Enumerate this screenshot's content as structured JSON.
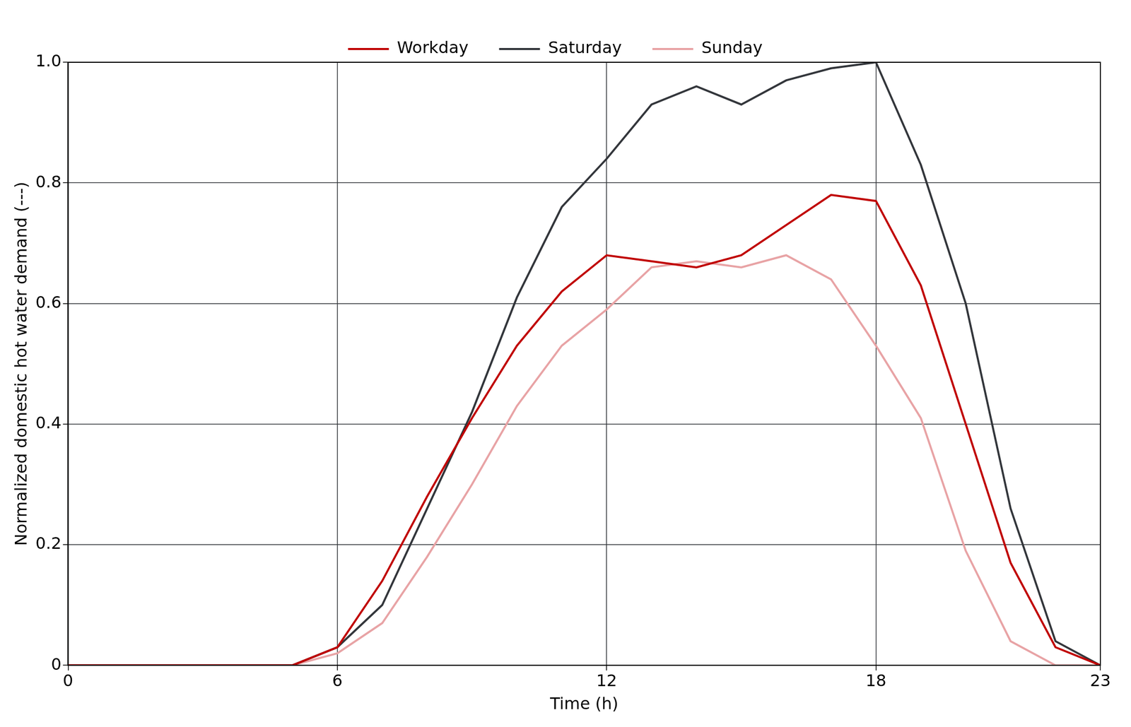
{
  "chart_data": {
    "type": "line",
    "x_label": "Time (h)",
    "y_label": "Normalized domestic hot water demand (---)",
    "x": [
      0,
      1,
      2,
      3,
      4,
      5,
      6,
      7,
      8,
      9,
      10,
      11,
      12,
      13,
      14,
      15,
      16,
      17,
      18,
      19,
      20,
      21,
      22,
      23
    ],
    "series": [
      {
        "name": "Workday",
        "color": "#c00000",
        "values": [
          0,
          0,
          0,
          0,
          0,
          0,
          0.03,
          0.14,
          0.28,
          0.41,
          0.53,
          0.62,
          0.68,
          0.67,
          0.66,
          0.68,
          0.73,
          0.78,
          0.77,
          0.63,
          0.4,
          0.17,
          0.03,
          0
        ]
      },
      {
        "name": "Saturday",
        "color": "#33363b",
        "values": [
          0,
          0,
          0,
          0,
          0,
          0,
          0.03,
          0.1,
          0.26,
          0.42,
          0.61,
          0.76,
          0.84,
          0.93,
          0.96,
          0.93,
          0.97,
          0.99,
          1.0,
          0.83,
          0.6,
          0.26,
          0.04,
          0
        ]
      },
      {
        "name": "Sunday",
        "color": "#e8a3a5",
        "values": [
          0,
          0,
          0,
          0,
          0,
          0,
          0.02,
          0.07,
          0.18,
          0.3,
          0.43,
          0.53,
          0.59,
          0.66,
          0.67,
          0.66,
          0.68,
          0.64,
          0.53,
          0.41,
          0.19,
          0.04,
          0,
          0
        ]
      }
    ],
    "xlim": [
      0,
      23
    ],
    "xticks": [
      0,
      6,
      12,
      18,
      23
    ],
    "ylim": [
      0,
      1.0
    ],
    "yticks": [
      0,
      {
        "value": 0.2,
        "label": "0.2"
      },
      {
        "value": 0.4,
        "label": "0.4"
      },
      {
        "value": 0.6,
        "label": "0.6"
      },
      {
        "value": 0.8,
        "label": "0.8"
      },
      {
        "value": 1.0,
        "label": "1.0"
      }
    ],
    "grid": true,
    "legend": "top"
  }
}
